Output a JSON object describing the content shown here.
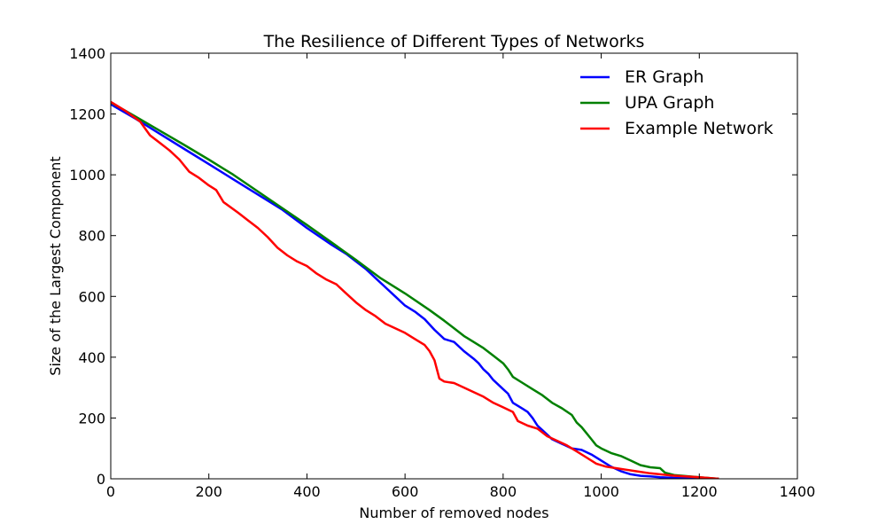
{
  "chart_data": {
    "type": "line",
    "title": "The Resilience of Different Types of Networks",
    "xlabel": "Number of removed nodes",
    "ylabel": "Size of the Largest Component",
    "xlim": [
      0,
      1400
    ],
    "ylim": [
      0,
      1400
    ],
    "xticks": [
      0,
      200,
      400,
      600,
      800,
      1000,
      1200,
      1400
    ],
    "yticks": [
      0,
      200,
      400,
      600,
      800,
      1000,
      1200,
      1400
    ],
    "legend_position": "top-right",
    "series": [
      {
        "name": "ER Graph",
        "color": "#0000ff",
        "points": [
          [
            0,
            1232
          ],
          [
            50,
            1185
          ],
          [
            100,
            1135
          ],
          [
            150,
            1085
          ],
          [
            200,
            1035
          ],
          [
            250,
            985
          ],
          [
            300,
            935
          ],
          [
            350,
            885
          ],
          [
            400,
            825
          ],
          [
            450,
            770
          ],
          [
            480,
            740
          ],
          [
            500,
            715
          ],
          [
            520,
            690
          ],
          [
            540,
            660
          ],
          [
            560,
            630
          ],
          [
            580,
            600
          ],
          [
            600,
            570
          ],
          [
            620,
            550
          ],
          [
            640,
            525
          ],
          [
            660,
            490
          ],
          [
            680,
            460
          ],
          [
            700,
            450
          ],
          [
            720,
            420
          ],
          [
            740,
            395
          ],
          [
            750,
            380
          ],
          [
            760,
            360
          ],
          [
            770,
            345
          ],
          [
            780,
            325
          ],
          [
            790,
            310
          ],
          [
            800,
            295
          ],
          [
            810,
            280
          ],
          [
            820,
            250
          ],
          [
            830,
            240
          ],
          [
            840,
            230
          ],
          [
            850,
            220
          ],
          [
            860,
            200
          ],
          [
            870,
            175
          ],
          [
            880,
            160
          ],
          [
            890,
            145
          ],
          [
            900,
            130
          ],
          [
            920,
            115
          ],
          [
            940,
            100
          ],
          [
            960,
            95
          ],
          [
            980,
            80
          ],
          [
            1000,
            60
          ],
          [
            1020,
            40
          ],
          [
            1040,
            25
          ],
          [
            1060,
            15
          ],
          [
            1080,
            10
          ],
          [
            1100,
            8
          ],
          [
            1120,
            5
          ],
          [
            1150,
            3
          ],
          [
            1200,
            2
          ],
          [
            1240,
            0
          ]
        ]
      },
      {
        "name": "UPA Graph",
        "color": "#008000",
        "points": [
          [
            0,
            1238
          ],
          [
            50,
            1192
          ],
          [
            100,
            1145
          ],
          [
            150,
            1098
          ],
          [
            200,
            1050
          ],
          [
            250,
            1000
          ],
          [
            300,
            945
          ],
          [
            350,
            890
          ],
          [
            400,
            835
          ],
          [
            450,
            778
          ],
          [
            500,
            720
          ],
          [
            550,
            660
          ],
          [
            600,
            610
          ],
          [
            650,
            555
          ],
          [
            680,
            520
          ],
          [
            700,
            495
          ],
          [
            720,
            470
          ],
          [
            740,
            450
          ],
          [
            760,
            430
          ],
          [
            780,
            405
          ],
          [
            800,
            380
          ],
          [
            810,
            360
          ],
          [
            820,
            335
          ],
          [
            840,
            315
          ],
          [
            860,
            295
          ],
          [
            880,
            275
          ],
          [
            900,
            250
          ],
          [
            920,
            232
          ],
          [
            940,
            210
          ],
          [
            950,
            185
          ],
          [
            960,
            170
          ],
          [
            970,
            150
          ],
          [
            980,
            130
          ],
          [
            990,
            110
          ],
          [
            1000,
            100
          ],
          [
            1020,
            85
          ],
          [
            1040,
            75
          ],
          [
            1060,
            60
          ],
          [
            1080,
            45
          ],
          [
            1100,
            38
          ],
          [
            1120,
            35
          ],
          [
            1130,
            20
          ],
          [
            1150,
            12
          ],
          [
            1200,
            5
          ],
          [
            1240,
            0
          ]
        ]
      },
      {
        "name": "Example Network",
        "color": "#ff0000",
        "points": [
          [
            0,
            1240
          ],
          [
            30,
            1210
          ],
          [
            60,
            1175
          ],
          [
            80,
            1130
          ],
          [
            100,
            1105
          ],
          [
            120,
            1080
          ],
          [
            140,
            1050
          ],
          [
            160,
            1010
          ],
          [
            180,
            990
          ],
          [
            200,
            965
          ],
          [
            215,
            950
          ],
          [
            230,
            910
          ],
          [
            260,
            875
          ],
          [
            280,
            850
          ],
          [
            300,
            825
          ],
          [
            320,
            795
          ],
          [
            340,
            760
          ],
          [
            360,
            735
          ],
          [
            380,
            715
          ],
          [
            400,
            700
          ],
          [
            420,
            675
          ],
          [
            440,
            655
          ],
          [
            460,
            640
          ],
          [
            480,
            610
          ],
          [
            500,
            580
          ],
          [
            520,
            555
          ],
          [
            540,
            535
          ],
          [
            560,
            510
          ],
          [
            580,
            495
          ],
          [
            600,
            480
          ],
          [
            620,
            460
          ],
          [
            640,
            440
          ],
          [
            650,
            420
          ],
          [
            660,
            390
          ],
          [
            670,
            330
          ],
          [
            680,
            320
          ],
          [
            700,
            315
          ],
          [
            720,
            300
          ],
          [
            740,
            285
          ],
          [
            760,
            270
          ],
          [
            780,
            250
          ],
          [
            800,
            235
          ],
          [
            820,
            220
          ],
          [
            830,
            190
          ],
          [
            850,
            175
          ],
          [
            870,
            165
          ],
          [
            890,
            140
          ],
          [
            910,
            125
          ],
          [
            930,
            110
          ],
          [
            950,
            90
          ],
          [
            970,
            70
          ],
          [
            990,
            50
          ],
          [
            1010,
            40
          ],
          [
            1030,
            35
          ],
          [
            1050,
            30
          ],
          [
            1070,
            25
          ],
          [
            1100,
            18
          ],
          [
            1150,
            10
          ],
          [
            1200,
            5
          ],
          [
            1240,
            0
          ]
        ]
      }
    ]
  }
}
